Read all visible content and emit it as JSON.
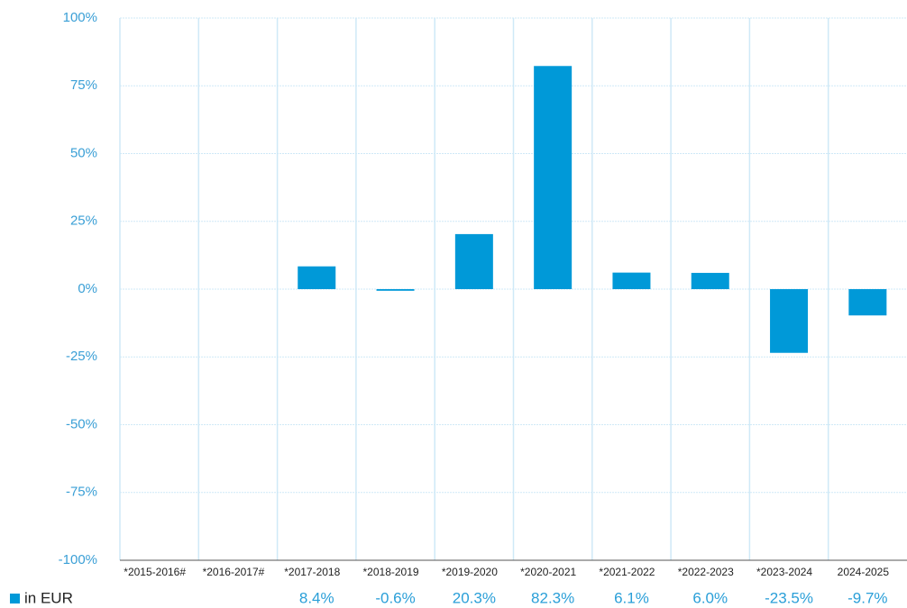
{
  "chart_data": {
    "type": "bar",
    "categories": [
      "*2015-2016#",
      "*2016-2017#",
      "*2017-2018",
      "*2018-2019",
      "*2019-2020",
      "*2020-2021",
      "*2021-2022",
      "*2022-2023",
      "*2023-2024",
      "2024-2025"
    ],
    "series": [
      {
        "name": "in EUR",
        "color": "#0099d8",
        "values": [
          null,
          null,
          8.4,
          -0.6,
          20.3,
          82.3,
          6.1,
          6.0,
          -23.5,
          -9.7
        ],
        "value_labels": [
          null,
          null,
          "8.4%",
          "-0.6%",
          "20.3%",
          "82.3%",
          "6.1%",
          "6.0%",
          "-23.5%",
          "-9.7%"
        ]
      }
    ],
    "ylim": [
      -100,
      100
    ],
    "yticks": [
      {
        "value": -100,
        "label": "-100%"
      },
      {
        "value": -75,
        "label": "-75%"
      },
      {
        "value": -50,
        "label": "-50%"
      },
      {
        "value": -25,
        "label": "-25%"
      },
      {
        "value": 0,
        "label": "0%"
      },
      {
        "value": 25,
        "label": "25%"
      },
      {
        "value": 50,
        "label": "50%"
      },
      {
        "value": 75,
        "label": "75%"
      },
      {
        "value": 100,
        "label": "100%"
      }
    ],
    "grid": true,
    "legend": "bottom-left"
  }
}
